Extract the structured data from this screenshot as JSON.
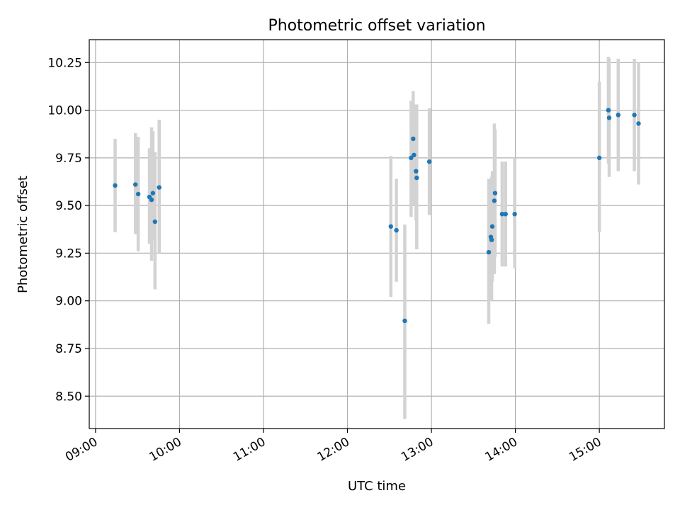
{
  "chart_data": {
    "type": "scatter",
    "title": "Photometric offset variation",
    "xlabel": "UTC time",
    "ylabel": "Photometric offset",
    "x_unit": "hours UTC",
    "xlim": [
      8.925,
      15.775
    ],
    "ylim": [
      8.33,
      10.37
    ],
    "grid": true,
    "xticks": [
      {
        "value": 9,
        "label": "09:00"
      },
      {
        "value": 10,
        "label": "10:00"
      },
      {
        "value": 11,
        "label": "11:00"
      },
      {
        "value": 12,
        "label": "12:00"
      },
      {
        "value": 13,
        "label": "13:00"
      },
      {
        "value": 14,
        "label": "14:00"
      },
      {
        "value": 15,
        "label": "15:00"
      }
    ],
    "yticks": [
      {
        "value": 8.5,
        "label": "8.50"
      },
      {
        "value": 8.75,
        "label": "8.75"
      },
      {
        "value": 9.0,
        "label": "9.00"
      },
      {
        "value": 9.25,
        "label": "9.25"
      },
      {
        "value": 9.5,
        "label": "9.50"
      },
      {
        "value": 9.75,
        "label": "9.75"
      },
      {
        "value": 10.0,
        "label": "10.00"
      },
      {
        "value": 10.25,
        "label": "10.25"
      }
    ],
    "colors": {
      "point": "#1f77b4",
      "errorbar": "#d3d3d3",
      "grid": "#b0b0b0"
    },
    "series": [
      {
        "name": "offset",
        "points": [
          {
            "x": 9.233,
            "y": 9.605,
            "ylo": 9.36,
            "yhi": 9.85
          },
          {
            "x": 9.475,
            "y": 9.61,
            "ylo": 9.35,
            "yhi": 9.88
          },
          {
            "x": 9.508,
            "y": 9.56,
            "ylo": 9.26,
            "yhi": 9.86
          },
          {
            "x": 9.642,
            "y": 9.545,
            "ylo": 9.3,
            "yhi": 9.8
          },
          {
            "x": 9.667,
            "y": 9.53,
            "ylo": 9.21,
            "yhi": 9.91
          },
          {
            "x": 9.683,
            "y": 9.565,
            "ylo": 9.32,
            "yhi": 9.89
          },
          {
            "x": 9.708,
            "y": 9.415,
            "ylo": 9.06,
            "yhi": 9.78
          },
          {
            "x": 9.758,
            "y": 9.595,
            "ylo": 9.25,
            "yhi": 9.95
          },
          {
            "x": 12.517,
            "y": 9.39,
            "ylo": 9.02,
            "yhi": 9.76
          },
          {
            "x": 12.583,
            "y": 9.37,
            "ylo": 9.1,
            "yhi": 9.64
          },
          {
            "x": 12.683,
            "y": 8.895,
            "ylo": 8.38,
            "yhi": 9.4
          },
          {
            "x": 12.758,
            "y": 9.75,
            "ylo": 9.44,
            "yhi": 10.05
          },
          {
            "x": 12.783,
            "y": 9.85,
            "ylo": 9.6,
            "yhi": 10.1
          },
          {
            "x": 12.792,
            "y": 9.765,
            "ylo": 9.5,
            "yhi": 10.03
          },
          {
            "x": 12.817,
            "y": 9.68,
            "ylo": 9.42,
            "yhi": 9.94
          },
          {
            "x": 12.825,
            "y": 9.645,
            "ylo": 9.27,
            "yhi": 10.03
          },
          {
            "x": 12.975,
            "y": 9.73,
            "ylo": 9.45,
            "yhi": 10.01
          },
          {
            "x": 13.683,
            "y": 9.255,
            "ylo": 8.88,
            "yhi": 9.64
          },
          {
            "x": 13.708,
            "y": 9.335,
            "ylo": 9.05,
            "yhi": 9.62
          },
          {
            "x": 13.717,
            "y": 9.32,
            "ylo": 9.0,
            "yhi": 9.65
          },
          {
            "x": 13.725,
            "y": 9.39,
            "ylo": 9.1,
            "yhi": 9.68
          },
          {
            "x": 13.75,
            "y": 9.525,
            "ylo": 9.14,
            "yhi": 9.93
          },
          {
            "x": 13.758,
            "y": 9.565,
            "ylo": 9.23,
            "yhi": 9.9
          },
          {
            "x": 13.842,
            "y": 9.455,
            "ylo": 9.18,
            "yhi": 9.73
          },
          {
            "x": 13.883,
            "y": 9.455,
            "ylo": 9.18,
            "yhi": 9.73
          },
          {
            "x": 13.992,
            "y": 9.455,
            "ylo": 9.17,
            "yhi": 9.75
          },
          {
            "x": 15.0,
            "y": 9.75,
            "ylo": 9.36,
            "yhi": 10.15
          },
          {
            "x": 15.108,
            "y": 10.0,
            "ylo": 9.72,
            "yhi": 10.28
          },
          {
            "x": 15.117,
            "y": 9.96,
            "ylo": 9.65,
            "yhi": 10.27
          },
          {
            "x": 15.225,
            "y": 9.975,
            "ylo": 9.68,
            "yhi": 10.27
          },
          {
            "x": 15.417,
            "y": 9.975,
            "ylo": 9.68,
            "yhi": 10.27
          },
          {
            "x": 15.467,
            "y": 9.93,
            "ylo": 9.61,
            "yhi": 10.25
          }
        ]
      }
    ]
  }
}
